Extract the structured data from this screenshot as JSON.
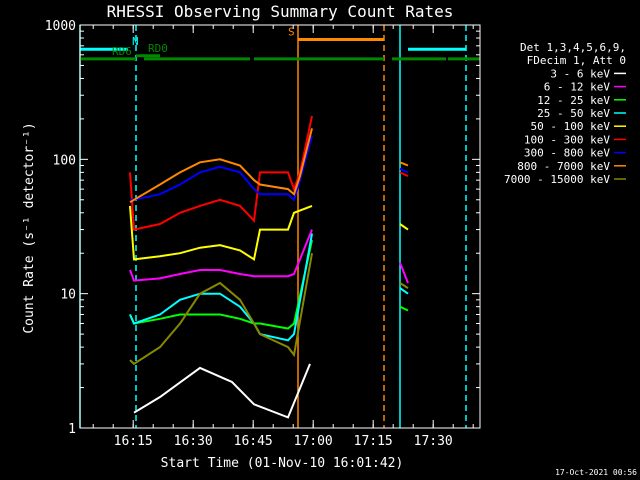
{
  "chart_data": {
    "type": "line",
    "title": "RHESSI Observing Summary Count Rates",
    "xlabel": "Start Time (01-Nov-10 16:01:42)",
    "ylabel": "Count Rate (s⁻¹ detector⁻¹)",
    "ylim": [
      1,
      1000
    ],
    "yscale": "log",
    "xlim_minutes": [
      0,
      100
    ],
    "x_ticks": [
      {
        "label": "16:15",
        "t": 13.3
      },
      {
        "label": "16:30",
        "t": 28.3
      },
      {
        "label": "16:45",
        "t": 43.3
      },
      {
        "label": "17:00",
        "t": 58.3
      },
      {
        "label": "17:15",
        "t": 73.3
      },
      {
        "label": "17:30",
        "t": 88.3
      }
    ],
    "y_ticks": [
      {
        "label": "1000",
        "v": 1000
      },
      {
        "label": "100",
        "v": 100
      },
      {
        "label": "10",
        "v": 10
      },
      {
        "label": "1",
        "v": 1
      }
    ],
    "legend_header": [
      "Det 1,3,4,5,6,9,",
      "FDecim 1, Att 0"
    ],
    "series": [
      {
        "name": "3 - 6 keV",
        "color": "#ffffff",
        "x": [
          13.5,
          20,
          30,
          38,
          43.5,
          52,
          57.5
        ],
        "y": [
          1.3,
          1.7,
          2.8,
          2.2,
          1.5,
          1.2,
          3
        ]
      },
      {
        "name": "6 - 12 keV",
        "color": "#ff00ff",
        "x": [
          0,
          12.5,
          13.5,
          20,
          25,
          30,
          35,
          40,
          43.5,
          45,
          52,
          53.5,
          58,
          60,
          70,
          78,
          80,
          82,
          100
        ],
        "y": [
          null,
          15,
          12.5,
          13,
          14,
          15,
          15,
          14,
          13.5,
          13.5,
          13.5,
          14,
          30,
          null,
          null,
          null,
          17,
          12,
          null
        ]
      },
      {
        "name": "12 - 25 keV",
        "color": "#00ff00",
        "x": [
          12.5,
          13.5,
          20,
          25,
          30,
          35,
          40,
          43.5,
          45,
          52,
          53.5,
          58,
          78,
          80,
          82
        ],
        "y": [
          7,
          6,
          6.5,
          7,
          7,
          7,
          6.5,
          6,
          6,
          5.5,
          6,
          25,
          null,
          8,
          7.5
        ]
      },
      {
        "name": "25 - 50 keV",
        "color": "#00ffff",
        "x": [
          12.5,
          13.5,
          20,
          25,
          30,
          35,
          40,
          43.5,
          45,
          52,
          53.5,
          58,
          78,
          80,
          82
        ],
        "y": [
          7,
          6,
          7,
          9,
          10,
          10,
          8,
          6,
          5,
          4.5,
          5,
          28,
          null,
          11,
          10
        ]
      },
      {
        "name": "50 - 100 keV",
        "color": "#ffff00",
        "x": [
          10,
          12.5,
          13.5,
          20,
          25,
          30,
          35,
          40,
          43.5,
          45,
          52,
          53.5,
          58,
          78,
          80,
          82
        ],
        "y": [
          null,
          45,
          18,
          19,
          20,
          22,
          23,
          21,
          18,
          30,
          30,
          40,
          45,
          null,
          33,
          30
        ]
      },
      {
        "name": "100 - 300 keV",
        "color": "#ff0000",
        "x": [
          10,
          12.5,
          13.5,
          20,
          25,
          30,
          35,
          40,
          43.5,
          45,
          52,
          53.5,
          55,
          58,
          78,
          80,
          82
        ],
        "y": [
          null,
          80,
          30,
          33,
          40,
          45,
          50,
          45,
          35,
          80,
          80,
          60,
          80,
          210,
          null,
          80,
          75
        ]
      },
      {
        "name": "300 - 800 keV",
        "color": "#0000ff",
        "x": [
          10,
          12.5,
          13.5,
          20,
          25,
          30,
          35,
          40,
          43.5,
          45,
          52,
          53.5,
          55,
          58,
          78,
          80,
          82
        ],
        "y": [
          null,
          50,
          50,
          55,
          65,
          80,
          88,
          80,
          60,
          55,
          55,
          50,
          70,
          150,
          null,
          85,
          80
        ]
      },
      {
        "name": "800 - 7000 keV",
        "color": "#ff8800",
        "x": [
          10,
          12.5,
          13.5,
          20,
          25,
          30,
          35,
          40,
          43.5,
          45,
          52,
          53.5,
          55,
          58,
          78,
          80,
          82
        ],
        "y": [
          null,
          48,
          50,
          65,
          80,
          95,
          100,
          90,
          70,
          65,
          60,
          55,
          75,
          170,
          null,
          95,
          90
        ]
      },
      {
        "name": "7000 - 15000 keV",
        "color": "#888800",
        "x": [
          12.5,
          13.5,
          20,
          25,
          30,
          35,
          40,
          43.5,
          45,
          52,
          53.5,
          58,
          78,
          80,
          82
        ],
        "y": [
          3.2,
          3,
          4,
          6,
          10,
          12,
          9,
          6,
          5,
          4,
          3.5,
          20,
          null,
          12,
          11
        ]
      }
    ],
    "status_bars": [
      {
        "label": "N",
        "color": "#00ffff",
        "level": 660,
        "segments": [
          [
            0,
            12
          ],
          [
            82,
            96.5
          ]
        ],
        "label_t": 13
      },
      {
        "label": "RD0",
        "color": "#008800",
        "level": 590,
        "segments": [
          [
            14,
            20
          ]
        ],
        "label_t": 17
      },
      {
        "label": "RD6",
        "color": "#008800",
        "level": 560,
        "segments": [
          [
            0,
            14
          ],
          [
            16,
            42.5
          ],
          [
            43.5,
            76
          ],
          [
            78,
            91.5
          ],
          [
            92,
            100
          ]
        ],
        "label_t": 8
      },
      {
        "label": "S",
        "color": "#ff8800",
        "level": 780,
        "segments": [
          [
            54.5,
            76
          ]
        ],
        "label_t": 52
      }
    ],
    "vertical_markers": [
      {
        "t": 0,
        "color": "#00ffff",
        "style": "solid"
      },
      {
        "t": 14,
        "color": "#00ffff",
        "style": "dashed"
      },
      {
        "t": 54.5,
        "color": "#ff8800",
        "style": "solid"
      },
      {
        "t": 76,
        "color": "#ff8800",
        "style": "dashed"
      },
      {
        "t": 80,
        "color": "#00ffff",
        "style": "solid"
      },
      {
        "t": 96.5,
        "color": "#00ffff",
        "style": "dashed"
      }
    ],
    "footer_date": "17-Oct-2021 00:56"
  }
}
